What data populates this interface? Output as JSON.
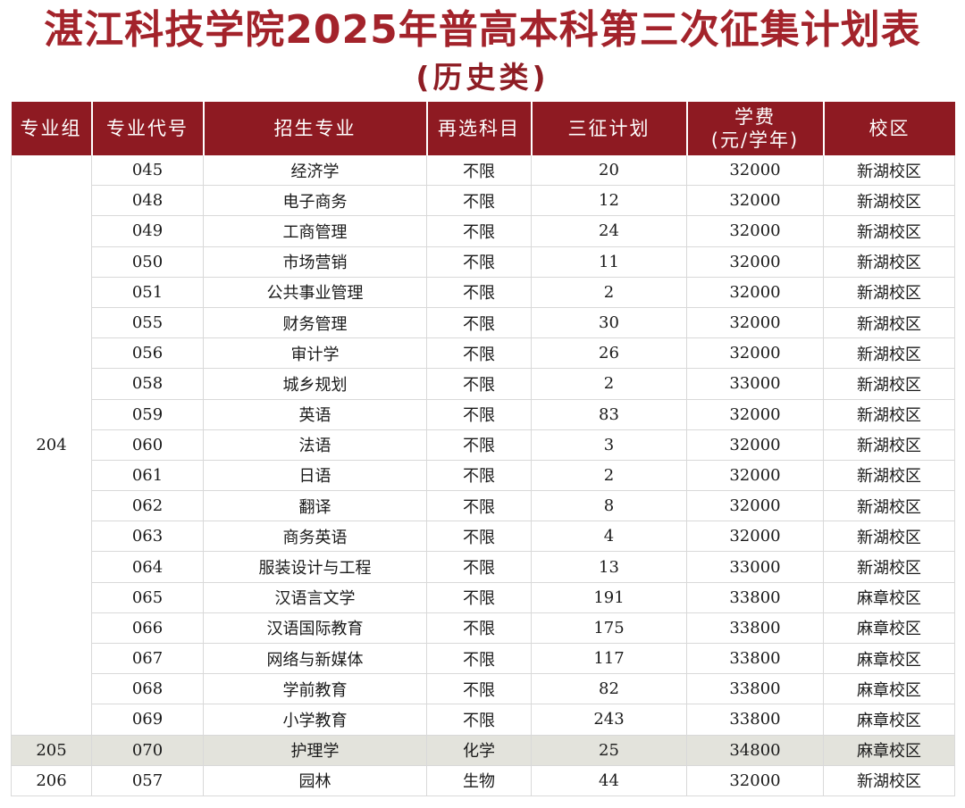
{
  "title": "湛江科技学院2025年普高本科第三次征集计划表",
  "subtitle": "(历史类)",
  "headers": {
    "group": "专业组",
    "code": "专业代号",
    "major": "招生专业",
    "subject": "再选科目",
    "plan": "三征计划",
    "fee_line1": "学费",
    "fee_line2": "(元/学年)",
    "campus": "校区"
  },
  "group_204": "204",
  "rows_204": [
    {
      "code": "045",
      "major": "经济学",
      "subject": "不限",
      "plan": "20",
      "fee": "32000",
      "campus": "新湖校区"
    },
    {
      "code": "048",
      "major": "电子商务",
      "subject": "不限",
      "plan": "12",
      "fee": "32000",
      "campus": "新湖校区"
    },
    {
      "code": "049",
      "major": "工商管理",
      "subject": "不限",
      "plan": "24",
      "fee": "32000",
      "campus": "新湖校区"
    },
    {
      "code": "050",
      "major": "市场营销",
      "subject": "不限",
      "plan": "11",
      "fee": "32000",
      "campus": "新湖校区"
    },
    {
      "code": "051",
      "major": "公共事业管理",
      "subject": "不限",
      "plan": "2",
      "fee": "32000",
      "campus": "新湖校区"
    },
    {
      "code": "055",
      "major": "财务管理",
      "subject": "不限",
      "plan": "30",
      "fee": "32000",
      "campus": "新湖校区"
    },
    {
      "code": "056",
      "major": "审计学",
      "subject": "不限",
      "plan": "26",
      "fee": "32000",
      "campus": "新湖校区"
    },
    {
      "code": "058",
      "major": "城乡规划",
      "subject": "不限",
      "plan": "2",
      "fee": "33000",
      "campus": "新湖校区"
    },
    {
      "code": "059",
      "major": "英语",
      "subject": "不限",
      "plan": "83",
      "fee": "32000",
      "campus": "新湖校区"
    },
    {
      "code": "060",
      "major": "法语",
      "subject": "不限",
      "plan": "3",
      "fee": "32000",
      "campus": "新湖校区"
    },
    {
      "code": "061",
      "major": "日语",
      "subject": "不限",
      "plan": "2",
      "fee": "32000",
      "campus": "新湖校区"
    },
    {
      "code": "062",
      "major": "翻译",
      "subject": "不限",
      "plan": "8",
      "fee": "32000",
      "campus": "新湖校区"
    },
    {
      "code": "063",
      "major": "商务英语",
      "subject": "不限",
      "plan": "4",
      "fee": "32000",
      "campus": "新湖校区"
    },
    {
      "code": "064",
      "major": "服装设计与工程",
      "subject": "不限",
      "plan": "13",
      "fee": "33000",
      "campus": "新湖校区"
    },
    {
      "code": "065",
      "major": "汉语言文学",
      "subject": "不限",
      "plan": "191",
      "fee": "33800",
      "campus": "麻章校区"
    },
    {
      "code": "066",
      "major": "汉语国际教育",
      "subject": "不限",
      "plan": "175",
      "fee": "33800",
      "campus": "麻章校区"
    },
    {
      "code": "067",
      "major": "网络与新媒体",
      "subject": "不限",
      "plan": "117",
      "fee": "33800",
      "campus": "麻章校区"
    },
    {
      "code": "068",
      "major": "学前教育",
      "subject": "不限",
      "plan": "82",
      "fee": "33800",
      "campus": "麻章校区"
    },
    {
      "code": "069",
      "major": "小学教育",
      "subject": "不限",
      "plan": "243",
      "fee": "33800",
      "campus": "麻章校区"
    }
  ],
  "row_205": {
    "group": "205",
    "code": "070",
    "major": "护理学",
    "subject": "化学",
    "plan": "25",
    "fee": "34800",
    "campus": "麻章校区"
  },
  "row_206": {
    "group": "206",
    "code": "057",
    "major": "园林",
    "subject": "生物",
    "plan": "44",
    "fee": "32000",
    "campus": "新湖校区"
  },
  "colors": {
    "title": "#a3232b",
    "header_bg": "#8e1a22",
    "highlight_row": "#e3e3dc"
  }
}
